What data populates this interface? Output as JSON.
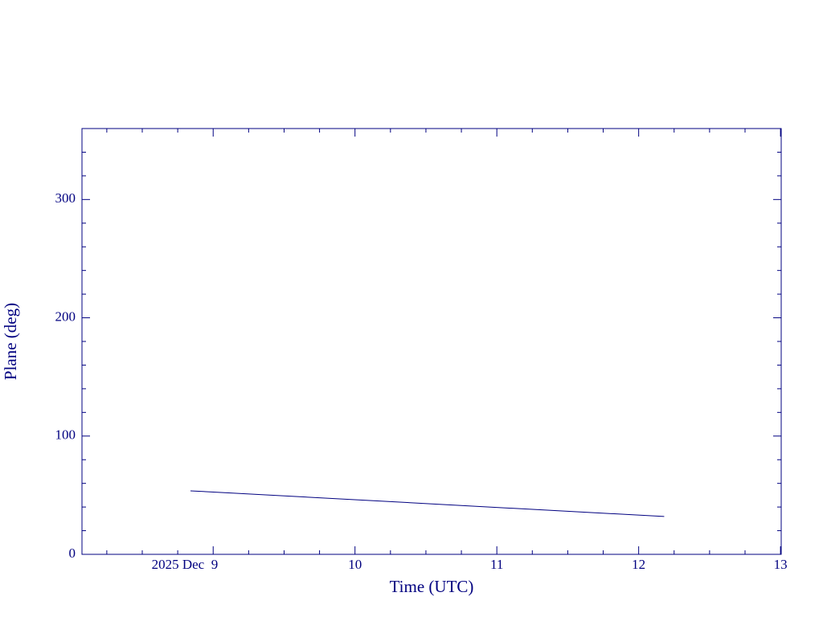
{
  "chart_data": {
    "type": "line",
    "xlabel": "Time (UTC)",
    "ylabel": "Plane (deg)",
    "x": [
      8.84,
      12.18
    ],
    "series": [
      {
        "color": "#000080",
        "values": [
          53.7,
          32.0
        ]
      }
    ],
    "xlim": [
      8.075,
      13.005
    ],
    "ylim": [
      0,
      360
    ],
    "xticks": [
      {
        "value": 9,
        "label": "2025 Dec  9"
      },
      10,
      11,
      12,
      13
    ],
    "yticks": [
      0,
      100,
      200,
      300
    ],
    "xminorticks": [
      8.25,
      8.5,
      8.75,
      9.25,
      9.5,
      9.75,
      10.25,
      10.5,
      10.75,
      11.25,
      11.5,
      11.75,
      12.25,
      12.5,
      12.75
    ],
    "yminorticks": [
      20,
      40,
      60,
      80,
      120,
      140,
      160,
      180,
      220,
      240,
      260,
      280,
      320,
      340,
      360
    ],
    "axis_color": "#000080"
  }
}
